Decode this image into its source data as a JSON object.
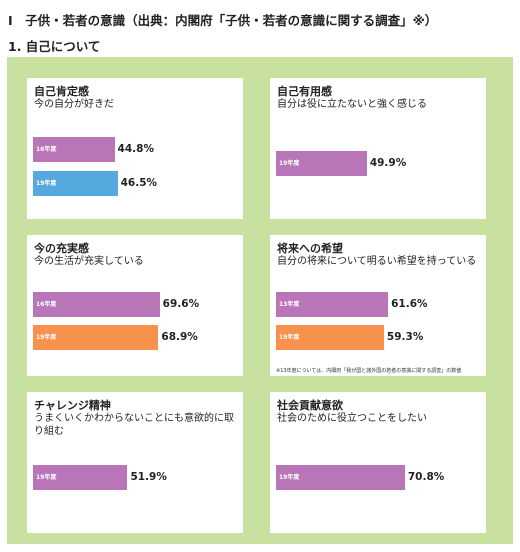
{
  "header": {
    "title": "Ⅰ　子供・若者の意識（出典：内閣府「子供・若者の意識に関する調査」※）",
    "subtitle": "1. 自己について"
  },
  "cards": [
    {
      "title": "自己肯定感",
      "desc": "今の自分が好きだ",
      "bars": [
        {
          "label": "16年度",
          "value": "44.8%",
          "pct": 44.8,
          "color": "#b875b8"
        },
        {
          "label": "19年度",
          "value": "46.5%",
          "pct": 46.5,
          "color": "#55a9de"
        }
      ]
    },
    {
      "title": "自己有用感",
      "desc": "自分は役に立たないと強く感じる",
      "bars": [
        {
          "label": "19年度",
          "value": "49.9%",
          "pct": 49.9,
          "color": "#b875b8"
        }
      ]
    },
    {
      "title": "今の充実感",
      "desc": "今の生活が充実している",
      "bars": [
        {
          "label": "16年度",
          "value": "69.6%",
          "pct": 69.6,
          "color": "#b875b8"
        },
        {
          "label": "19年度",
          "value": "68.9%",
          "pct": 68.9,
          "color": "#f7914c"
        }
      ]
    },
    {
      "title": "将来への希望",
      "desc": "自分の将来について明るい希望を持っている",
      "note": "※13年度については、内閣府「我が国と諸外国の若者の意識に関する調査」の数値",
      "bars": [
        {
          "label": "13年度",
          "value": "61.6%",
          "pct": 61.6,
          "color": "#b875b8"
        },
        {
          "label": "19年度",
          "value": "59.3%",
          "pct": 59.3,
          "color": "#f7914c"
        }
      ]
    },
    {
      "title": "チャレンジ精神",
      "desc": "うまくいくかわからないことにも意欲的に取り組む",
      "bars": [
        {
          "label": "19年度",
          "value": "51.9%",
          "pct": 51.9,
          "color": "#b875b8"
        }
      ]
    },
    {
      "title": "社会貢献意欲",
      "desc": "社会のために役立つことをしたい",
      "bars": [
        {
          "label": "19年度",
          "value": "70.8%",
          "pct": 70.8,
          "color": "#b875b8"
        }
      ]
    }
  ]
}
